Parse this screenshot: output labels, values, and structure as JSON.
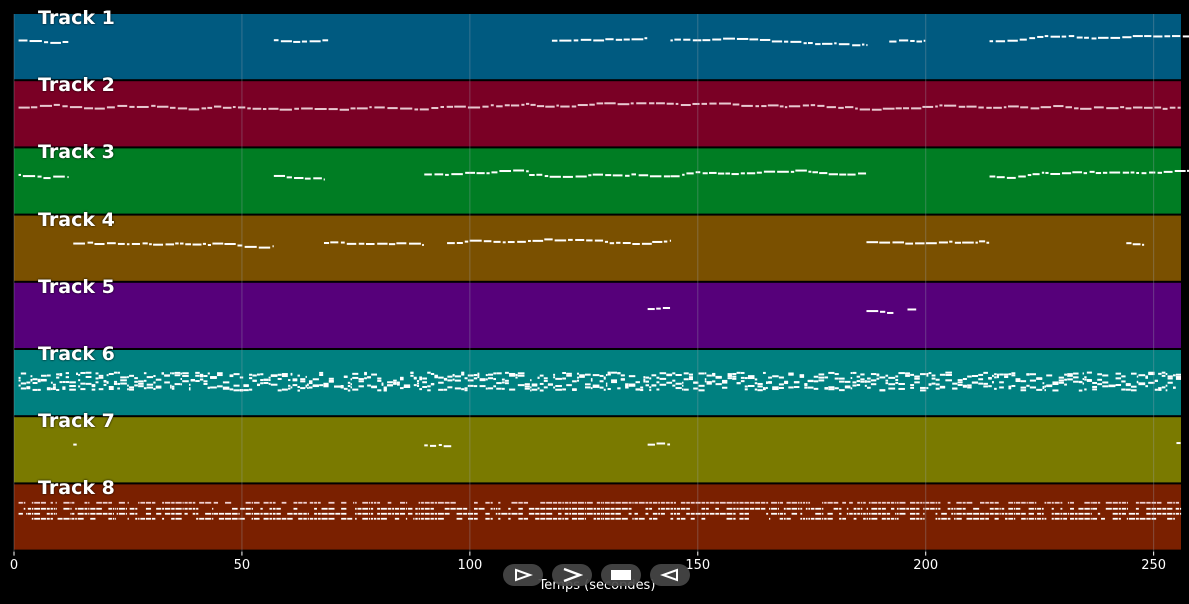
{
  "colors": {
    "background": "#000000",
    "note": "#ffffff",
    "grid": "#9aa3b0"
  },
  "tracks": [
    {
      "name": "Track 1",
      "color": "#005a80"
    },
    {
      "name": "Track 2",
      "color": "#7a0025"
    },
    {
      "name": "Track 3",
      "color": "#007d23"
    },
    {
      "name": "Track 4",
      "color": "#7a5000"
    },
    {
      "name": "Track 5",
      "color": "#56007a"
    },
    {
      "name": "Track 6",
      "color": "#008080"
    },
    {
      "name": "Track 7",
      "color": "#7a7a00"
    },
    {
      "name": "Track 8",
      "color": "#7a2000"
    }
  ],
  "axis": {
    "xlabel": "Temps (secondes)",
    "xmin": 0,
    "xmax": 256,
    "ticks": [
      {
        "value": 0,
        "label": "0"
      },
      {
        "value": 50,
        "label": "50"
      },
      {
        "value": 100,
        "label": "100"
      },
      {
        "value": 150,
        "label": "150"
      },
      {
        "value": 200,
        "label": "200"
      },
      {
        "value": 250,
        "label": "250"
      }
    ]
  },
  "playback_controls": [
    {
      "name": "play-outline-button",
      "icon": "play-outline-icon"
    },
    {
      "name": "play-button",
      "icon": "chevron-right-icon"
    },
    {
      "name": "stop-button",
      "icon": "stop-icon"
    },
    {
      "name": "rewind-button",
      "icon": "rewind-outline-icon"
    }
  ],
  "note_activity": [
    [
      [
        1,
        12
      ],
      [
        57,
        69
      ],
      [
        118,
        139
      ],
      [
        144,
        187
      ],
      [
        192,
        200
      ],
      [
        214,
        258
      ]
    ],
    [
      [
        1,
        256
      ]
    ],
    [
      [
        1,
        12
      ],
      [
        57,
        68
      ],
      [
        90,
        113
      ],
      [
        113,
        144
      ],
      [
        144,
        187
      ],
      [
        214,
        258
      ]
    ],
    [
      [
        13,
        57
      ],
      [
        68,
        90
      ],
      [
        95,
        140
      ],
      [
        140,
        144
      ],
      [
        187,
        214
      ],
      [
        244,
        248
      ]
    ],
    [
      [
        139,
        144
      ],
      [
        187,
        193
      ],
      [
        196,
        198
      ]
    ],
    [
      [
        1,
        256
      ]
    ],
    [
      [
        13,
        14
      ],
      [
        90,
        96
      ],
      [
        139,
        144
      ],
      [
        255,
        256
      ]
    ],
    [
      [
        1,
        256
      ]
    ]
  ]
}
